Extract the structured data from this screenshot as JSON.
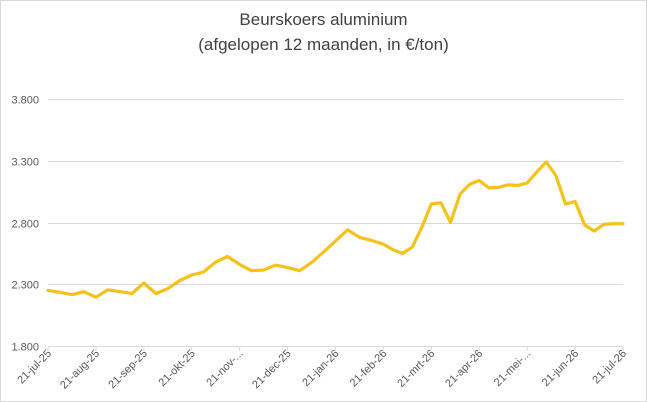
{
  "chart_data": {
    "type": "line",
    "title": "Beurskoers aluminium",
    "subtitle": "(afgelopen 12 maanden, in €/ton)",
    "xlabel": "",
    "ylabel": "",
    "ylim": [
      1800,
      3800
    ],
    "yticks": [
      1800,
      2300,
      2800,
      3300,
      3800
    ],
    "ytick_labels": [
      "1.800",
      "2.300",
      "2.800",
      "3.300",
      "3.800"
    ],
    "grid": true,
    "legend": "none",
    "line_color": "#F5C11A",
    "x_tick_labels": [
      "21-jul-25",
      "21-aug-25",
      "21-sep-25",
      "21-okt-25",
      "21-nov-...",
      "21-dec-25",
      "21-jan-26",
      "21-feb-26",
      "21-mrt-26",
      "21-apr-26",
      "21-mei-...",
      "21-jun-26",
      "21-jul-26"
    ],
    "series": [
      {
        "x": [
          0,
          0.25,
          0.5,
          0.75,
          1,
          1.25,
          1.5,
          1.75,
          2,
          2.25,
          2.5,
          2.75,
          3,
          3.25,
          3.5,
          3.75,
          4,
          4.25,
          4.5,
          4.75,
          5,
          5.25,
          5.5,
          5.75,
          6,
          6.25,
          6.5,
          6.75,
          7,
          7.2,
          7.4,
          7.6,
          7.8,
          8,
          8.2,
          8.4,
          8.6,
          8.8,
          9,
          9.2,
          9.4,
          9.6,
          9.8,
          10,
          10.2,
          10.4,
          10.6,
          10.8,
          11,
          11.2,
          11.4,
          11.6,
          11.8,
          12
        ],
        "values": [
          2250,
          2235,
          2215,
          2240,
          2195,
          2255,
          2240,
          2225,
          2310,
          2225,
          2265,
          2330,
          2375,
          2400,
          2480,
          2525,
          2460,
          2410,
          2415,
          2455,
          2435,
          2410,
          2475,
          2560,
          2650,
          2740,
          2680,
          2655,
          2625,
          2580,
          2550,
          2600,
          2760,
          2950,
          2960,
          2800,
          3030,
          3110,
          3140,
          3080,
          3085,
          3105,
          3100,
          3120,
          3210,
          3290,
          3180,
          2950,
          2970,
          2780,
          2730,
          2785,
          2790,
          2790
        ]
      }
    ]
  }
}
